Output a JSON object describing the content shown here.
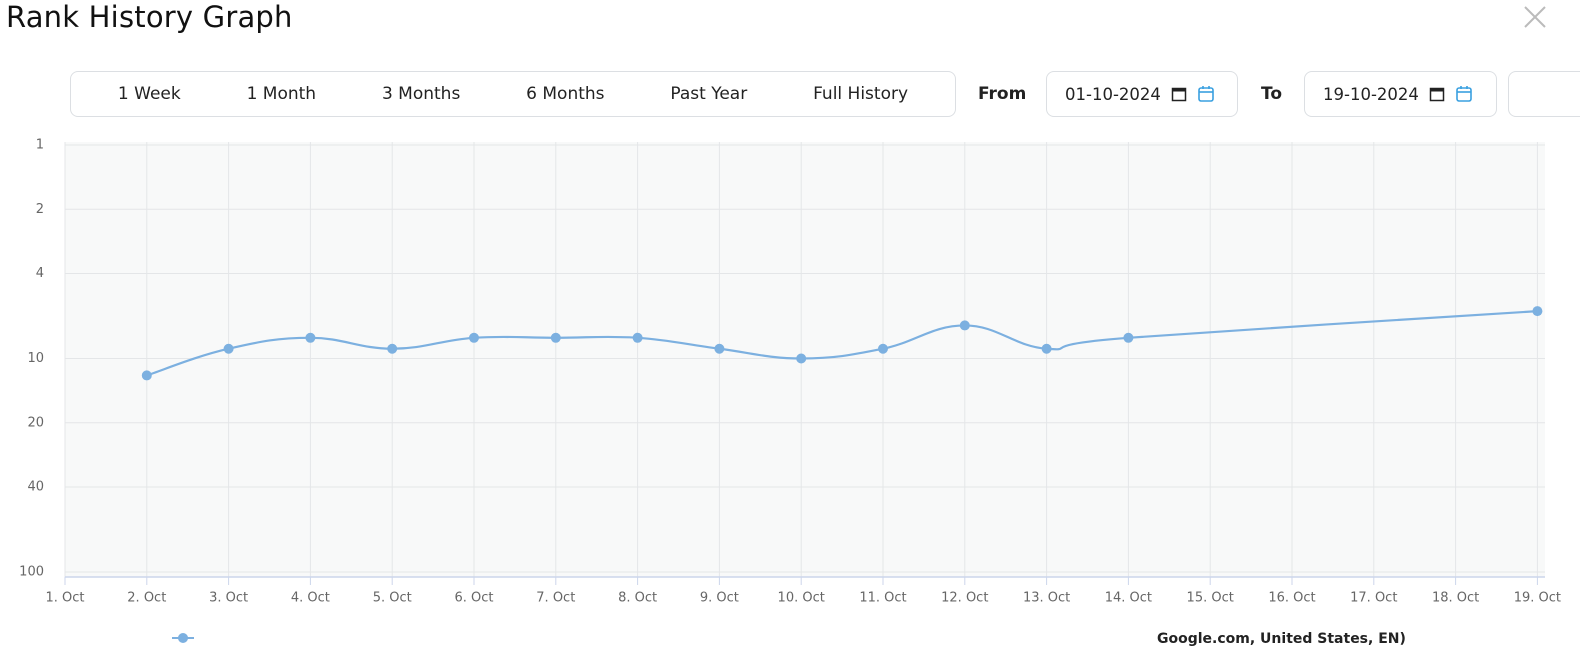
{
  "header": {
    "title": "Rank History Graph"
  },
  "controls": {
    "ranges": [
      "1 Week",
      "1 Month",
      "3 Months",
      "6 Months",
      "Past Year",
      "Full History"
    ],
    "from_label": "From",
    "from_date": "01-10-2024",
    "to_label": "To",
    "to_date": "19-10-2024"
  },
  "chart_data": {
    "type": "line",
    "categories": [
      "1. Oct",
      "2. Oct",
      "3. Oct",
      "4. Oct",
      "5. Oct",
      "6. Oct",
      "7. Oct",
      "8. Oct",
      "9. Oct",
      "10. Oct",
      "11. Oct",
      "12. Oct",
      "13. Oct",
      "14. Oct",
      "15. Oct",
      "16. Oct",
      "17. Oct",
      "18. Oct",
      "19. Oct"
    ],
    "series": [
      {
        "color": "#7cb0e0",
        "values": [
          null,
          12,
          9,
          8,
          9,
          8,
          8,
          8,
          9,
          10,
          9,
          7,
          9,
          8,
          null,
          null,
          null,
          null,
          6
        ]
      }
    ],
    "ylim": [
      1,
      100
    ],
    "yticks": [
      1,
      2,
      4,
      10,
      20,
      40,
      100
    ],
    "y_log": true,
    "y_reversed": true,
    "grid": true,
    "connect_nulls": true,
    "smooth": true,
    "legend_note": "Google.com, United States, EN)"
  }
}
